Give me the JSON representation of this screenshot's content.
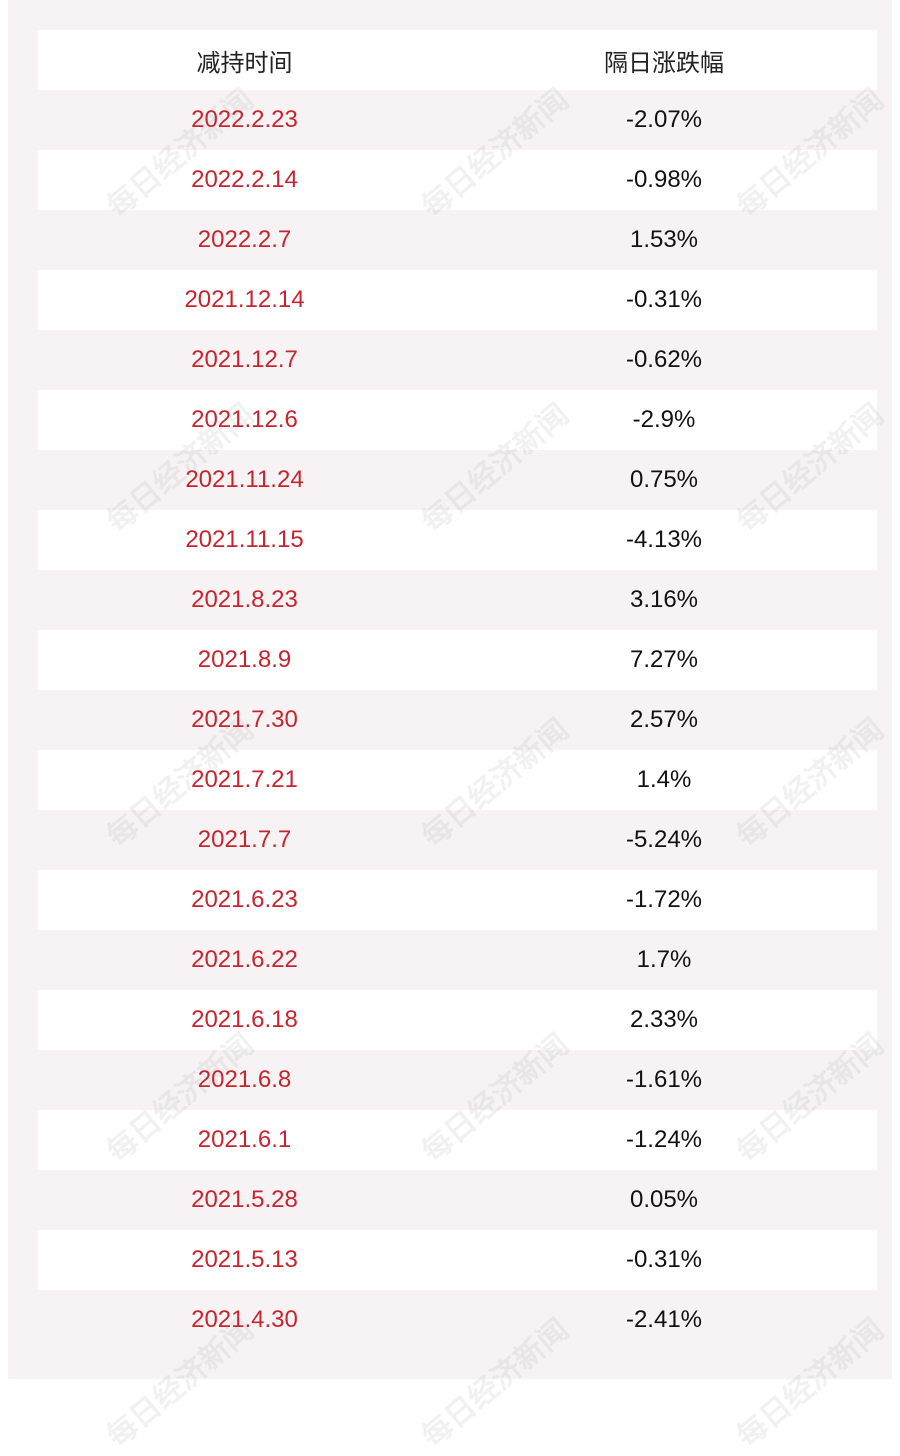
{
  "header": {
    "col_date": "减持时间",
    "col_change": "隔日涨跌幅"
  },
  "rows": [
    {
      "date": "2022.2.23",
      "change": "-2.07%"
    },
    {
      "date": "2022.2.14",
      "change": "-0.98%"
    },
    {
      "date": "2022.2.7",
      "change": "1.53%"
    },
    {
      "date": "2021.12.14",
      "change": "-0.31%"
    },
    {
      "date": "2021.12.7",
      "change": "-0.62%"
    },
    {
      "date": "2021.12.6",
      "change": "-2.9%"
    },
    {
      "date": "2021.11.24",
      "change": "0.75%"
    },
    {
      "date": "2021.11.15",
      "change": "-4.13%"
    },
    {
      "date": "2021.8.23",
      "change": "3.16%"
    },
    {
      "date": "2021.8.9",
      "change": "7.27%"
    },
    {
      "date": "2021.7.30",
      "change": "2.57%"
    },
    {
      "date": "2021.7.21",
      "change": "1.4%"
    },
    {
      "date": "2021.7.7",
      "change": "-5.24%"
    },
    {
      "date": "2021.6.23",
      "change": "-1.72%"
    },
    {
      "date": "2021.6.22",
      "change": "1.7%"
    },
    {
      "date": "2021.6.18",
      "change": "2.33%"
    },
    {
      "date": "2021.6.8",
      "change": "-1.61%"
    },
    {
      "date": "2021.6.1",
      "change": "-1.24%"
    },
    {
      "date": "2021.5.28",
      "change": "0.05%"
    },
    {
      "date": "2021.5.13",
      "change": "-0.31%"
    },
    {
      "date": "2021.4.30",
      "change": "-2.41%"
    }
  ],
  "watermark": "每日经济新闻",
  "colors": {
    "date_text": "#c8242f",
    "value_text": "#111111",
    "band": "#f7f3f4"
  }
}
